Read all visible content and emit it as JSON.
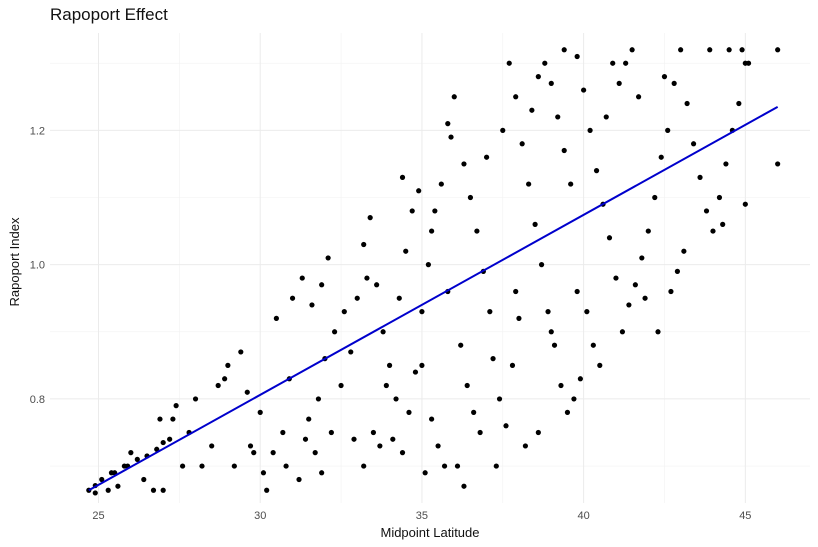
{
  "chart_data": {
    "type": "scatter",
    "title": "Rapoport Effect",
    "xlabel": "Midpoint Latitude",
    "ylabel": "Rapoport Index",
    "xlim": [
      23.5,
      47.0
    ],
    "ylim": [
      0.645,
      1.345
    ],
    "x_ticks": [
      25,
      30,
      35,
      40,
      45
    ],
    "y_ticks": [
      0.8,
      1.0,
      1.2
    ],
    "grid": true,
    "legend": "none",
    "point_color": "#000000",
    "trend_color": "#0000cc",
    "trend_line": {
      "x": [
        24.7,
        46.0
      ],
      "y": [
        0.664,
        1.235
      ]
    },
    "points": [
      [
        24.7,
        0.664
      ],
      [
        24.9,
        0.671
      ],
      [
        25.1,
        0.68
      ],
      [
        25.3,
        0.664
      ],
      [
        25.5,
        0.69
      ],
      [
        25.6,
        0.67
      ],
      [
        25.9,
        0.7
      ],
      [
        26.2,
        0.71
      ],
      [
        26.5,
        0.715
      ],
      [
        26.8,
        0.725
      ],
      [
        27.0,
        0.735
      ],
      [
        27.2,
        0.74
      ],
      [
        26.9,
        0.77
      ],
      [
        27.4,
        0.79
      ],
      [
        27.8,
        0.75
      ],
      [
        26.7,
        0.664
      ],
      [
        26.4,
        0.68
      ],
      [
        27.0,
        0.664
      ],
      [
        27.6,
        0.7
      ],
      [
        28.2,
        0.7
      ],
      [
        28.5,
        0.73
      ],
      [
        28.7,
        0.82
      ],
      [
        29.0,
        0.85
      ],
      [
        29.4,
        0.87
      ],
      [
        29.6,
        0.81
      ],
      [
        30.0,
        0.78
      ],
      [
        30.4,
        0.72
      ],
      [
        30.8,
        0.7
      ],
      [
        31.2,
        0.68
      ],
      [
        31.4,
        0.74
      ],
      [
        29.8,
        0.72
      ],
      [
        30.1,
        0.69
      ],
      [
        30.5,
        0.92
      ],
      [
        31.0,
        0.95
      ],
      [
        31.3,
        0.98
      ],
      [
        31.6,
        0.94
      ],
      [
        31.9,
        0.97
      ],
      [
        32.1,
        1.01
      ],
      [
        32.3,
        0.9
      ],
      [
        32.0,
        0.86
      ],
      [
        31.8,
        0.8
      ],
      [
        31.5,
        0.77
      ],
      [
        31.7,
        0.72
      ],
      [
        32.2,
        0.75
      ],
      [
        32.5,
        0.82
      ],
      [
        32.8,
        0.87
      ],
      [
        33.0,
        0.95
      ],
      [
        33.2,
        1.03
      ],
      [
        33.4,
        1.07
      ],
      [
        33.6,
        0.97
      ],
      [
        33.8,
        0.9
      ],
      [
        34.0,
        0.85
      ],
      [
        34.2,
        0.8
      ],
      [
        33.5,
        0.75
      ],
      [
        33.2,
        0.7
      ],
      [
        32.9,
        0.74
      ],
      [
        34.4,
        0.72
      ],
      [
        34.6,
        0.78
      ],
      [
        34.8,
        0.84
      ],
      [
        35.0,
        0.93
      ],
      [
        35.2,
        1.0
      ],
      [
        35.4,
        1.08
      ],
      [
        35.6,
        1.12
      ],
      [
        35.9,
        1.19
      ],
      [
        36.0,
        1.25
      ],
      [
        35.8,
        0.96
      ],
      [
        36.2,
        0.88
      ],
      [
        36.4,
        0.82
      ],
      [
        36.6,
        0.78
      ],
      [
        36.8,
        0.75
      ],
      [
        35.5,
        0.73
      ],
      [
        35.3,
        0.77
      ],
      [
        35.7,
        0.7
      ],
      [
        35.1,
        0.69
      ],
      [
        34.3,
        0.95
      ],
      [
        34.5,
        1.02
      ],
      [
        34.7,
        1.08
      ],
      [
        34.9,
        1.11
      ],
      [
        35.3,
        1.05
      ],
      [
        36.3,
        1.15
      ],
      [
        36.5,
        1.1
      ],
      [
        36.7,
        1.05
      ],
      [
        36.9,
        0.99
      ],
      [
        37.1,
        0.93
      ],
      [
        37.2,
        0.86
      ],
      [
        37.4,
        0.8
      ],
      [
        37.6,
        0.76
      ],
      [
        37.3,
        0.7
      ],
      [
        37.5,
        1.2
      ],
      [
        37.7,
        1.3
      ],
      [
        37.9,
        1.25
      ],
      [
        38.1,
        1.18
      ],
      [
        38.3,
        1.12
      ],
      [
        38.5,
        1.06
      ],
      [
        38.7,
        1.0
      ],
      [
        38.9,
        0.93
      ],
      [
        39.1,
        0.88
      ],
      [
        39.3,
        0.82
      ],
      [
        39.5,
        0.78
      ],
      [
        38.6,
        0.75
      ],
      [
        38.2,
        0.73
      ],
      [
        37.8,
        0.85
      ],
      [
        38.0,
        0.92
      ],
      [
        38.4,
        1.23
      ],
      [
        38.8,
        1.3
      ],
      [
        39.0,
        1.27
      ],
      [
        39.2,
        1.22
      ],
      [
        39.4,
        1.17
      ],
      [
        39.6,
        1.12
      ],
      [
        39.8,
        1.31
      ],
      [
        40.0,
        1.26
      ],
      [
        40.2,
        1.2
      ],
      [
        40.4,
        1.14
      ],
      [
        40.6,
        1.09
      ],
      [
        40.8,
        1.04
      ],
      [
        41.0,
        0.98
      ],
      [
        40.1,
        0.93
      ],
      [
        40.3,
        0.88
      ],
      [
        40.5,
        0.85
      ],
      [
        39.9,
        0.83
      ],
      [
        39.7,
        0.8
      ],
      [
        41.2,
        0.9
      ],
      [
        41.4,
        0.94
      ],
      [
        41.6,
        0.97
      ],
      [
        41.8,
        1.01
      ],
      [
        42.0,
        1.05
      ],
      [
        42.2,
        1.1
      ],
      [
        42.4,
        1.16
      ],
      [
        41.1,
        1.27
      ],
      [
        41.3,
        1.3
      ],
      [
        41.5,
        1.32
      ],
      [
        41.7,
        1.25
      ],
      [
        42.6,
        1.2
      ],
      [
        42.8,
        1.27
      ],
      [
        43.0,
        1.32
      ],
      [
        43.2,
        1.24
      ],
      [
        43.4,
        1.18
      ],
      [
        43.6,
        1.13
      ],
      [
        43.8,
        1.08
      ],
      [
        43.1,
        1.02
      ],
      [
        42.9,
        0.99
      ],
      [
        42.7,
        0.96
      ],
      [
        44.0,
        1.05
      ],
      [
        44.2,
        1.1
      ],
      [
        44.4,
        1.15
      ],
      [
        44.6,
        1.2
      ],
      [
        44.8,
        1.24
      ],
      [
        45.0,
        1.3
      ],
      [
        44.5,
        1.32
      ],
      [
        44.9,
        1.32
      ],
      [
        45.0,
        1.09
      ],
      [
        45.1,
        1.3
      ],
      [
        44.3,
        1.06
      ],
      [
        46.0,
        1.15
      ],
      [
        46.0,
        1.32
      ],
      [
        43.9,
        1.32
      ],
      [
        42.3,
        0.9
      ],
      [
        41.9,
        0.95
      ],
      [
        40.7,
        1.22
      ],
      [
        36.1,
        0.7
      ],
      [
        34.1,
        0.74
      ],
      [
        33.7,
        0.73
      ],
      [
        30.7,
        0.75
      ],
      [
        29.2,
        0.7
      ],
      [
        28.0,
        0.8
      ],
      [
        27.3,
        0.77
      ],
      [
        26.0,
        0.72
      ],
      [
        25.4,
        0.69
      ],
      [
        24.9,
        0.66
      ],
      [
        25.8,
        0.7
      ],
      [
        28.9,
        0.83
      ],
      [
        29.7,
        0.73
      ],
      [
        30.9,
        0.83
      ],
      [
        32.6,
        0.93
      ],
      [
        33.3,
        0.98
      ],
      [
        34.4,
        1.13
      ],
      [
        35.8,
        1.21
      ],
      [
        37.0,
        1.16
      ],
      [
        38.6,
        1.28
      ],
      [
        39.4,
        1.32
      ],
      [
        40.9,
        1.3
      ],
      [
        42.5,
        1.28
      ],
      [
        36.3,
        0.67
      ],
      [
        31.9,
        0.69
      ],
      [
        30.2,
        0.664
      ],
      [
        37.9,
        0.96
      ],
      [
        39.0,
        0.9
      ],
      [
        39.8,
        0.96
      ],
      [
        35.0,
        0.85
      ],
      [
        33.9,
        0.82
      ]
    ]
  }
}
